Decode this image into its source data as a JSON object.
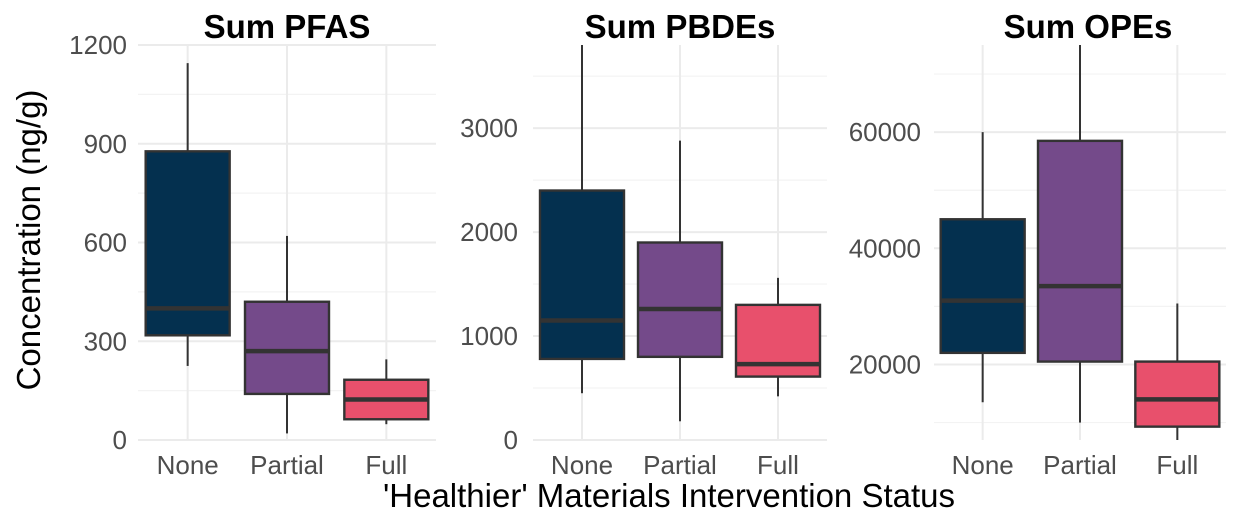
{
  "chart_data": [
    {
      "type": "box",
      "title": "Sum PFAS",
      "categories": [
        "None",
        "Partial",
        "Full"
      ],
      "colors": [
        "#04304f",
        "#744a8a",
        "#e8506c"
      ],
      "ylim": [
        0,
        1200
      ],
      "yticks": [
        0,
        300,
        600,
        900,
        1200
      ],
      "boxes": [
        {
          "category": "None",
          "min": 225,
          "q1": 318,
          "median": 400,
          "q3": 877,
          "max": 1145
        },
        {
          "category": "Partial",
          "min": 20,
          "q1": 140,
          "median": 270,
          "q3": 420,
          "max": 620
        },
        {
          "category": "Full",
          "min": 48,
          "q1": 63,
          "median": 123,
          "q3": 183,
          "max": 245
        }
      ],
      "grid": true
    },
    {
      "type": "box",
      "title": "Sum PBDEs",
      "categories": [
        "None",
        "Partial",
        "Full"
      ],
      "colors": [
        "#04304f",
        "#744a8a",
        "#e8506c"
      ],
      "ylim": [
        0,
        3800
      ],
      "yticks": [
        0,
        1000,
        2000,
        3000
      ],
      "boxes": [
        {
          "category": "None",
          "min": 450,
          "q1": 780,
          "median": 1150,
          "q3": 2400,
          "max": 3800
        },
        {
          "category": "Partial",
          "min": 180,
          "q1": 800,
          "median": 1260,
          "q3": 1900,
          "max": 2880
        },
        {
          "category": "Full",
          "min": 420,
          "q1": 610,
          "median": 730,
          "q3": 1300,
          "max": 1560
        }
      ],
      "grid": true
    },
    {
      "type": "box",
      "title": "Sum OPEs",
      "categories": [
        "None",
        "Partial",
        "Full"
      ],
      "colors": [
        "#04304f",
        "#744a8a",
        "#e8506c"
      ],
      "ylim": [
        7000,
        75000
      ],
      "yticks": [
        20000,
        40000,
        60000
      ],
      "boxes": [
        {
          "category": "None",
          "min": 13500,
          "q1": 22000,
          "median": 31000,
          "q3": 45000,
          "max": 60000
        },
        {
          "category": "Partial",
          "min": 10000,
          "q1": 20500,
          "median": 33500,
          "q3": 58500,
          "max": 75000
        },
        {
          "category": "Full",
          "min": 7000,
          "q1": 9300,
          "median": 14000,
          "q3": 20500,
          "max": 30500
        }
      ],
      "grid": true
    }
  ],
  "ylabel": "Concentration (ng/g)",
  "xlabel": "'Healthier' Materials Intervention Status"
}
